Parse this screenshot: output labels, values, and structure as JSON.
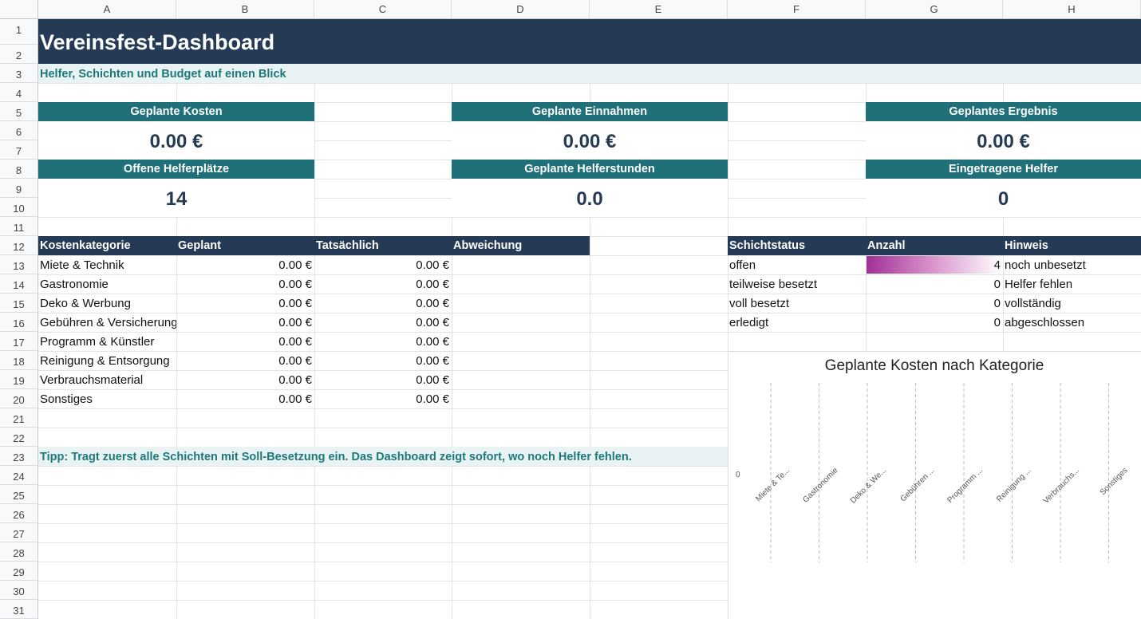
{
  "columns": [
    "A",
    "B",
    "C",
    "D",
    "E",
    "F",
    "G",
    "H"
  ],
  "rows": [
    "1",
    "2",
    "3",
    "4",
    "5",
    "6",
    "7",
    "8",
    "9",
    "10",
    "11",
    "12",
    "13",
    "14",
    "15",
    "16",
    "17",
    "18",
    "19",
    "20",
    "21",
    "22",
    "23",
    "24",
    "25",
    "26",
    "27",
    "28",
    "29",
    "30",
    "31"
  ],
  "title": "Vereinsfest-Dashboard",
  "subtitle": "Helfer, Schichten und Budget auf einen Blick",
  "kpis": [
    {
      "label": "Geplante Kosten",
      "value": "0.00 €"
    },
    {
      "label": "Geplante Einnahmen",
      "value": "0.00 €"
    },
    {
      "label": "Geplantes Ergebnis",
      "value": "0.00 €"
    },
    {
      "label": "Offene Helferplätze",
      "value": "14"
    },
    {
      "label": "Geplante Helferstunden",
      "value": "0.0"
    },
    {
      "label": "Eingetragene Helfer",
      "value": "0"
    }
  ],
  "cost_table": {
    "headers": [
      "Kostenkategorie",
      "Geplant",
      "Tatsächlich",
      "Abweichung"
    ],
    "rows": [
      {
        "category": "Miete & Technik",
        "planned": "0.00 €",
        "actual": "0.00 €"
      },
      {
        "category": "Gastronomie",
        "planned": "0.00 €",
        "actual": "0.00 €"
      },
      {
        "category": "Deko & Werbung",
        "planned": "0.00 €",
        "actual": "0.00 €"
      },
      {
        "category": "Gebühren & Versicherungen",
        "planned": "0.00 €",
        "actual": "0.00 €"
      },
      {
        "category": "Programm & Künstler",
        "planned": "0.00 €",
        "actual": "0.00 €"
      },
      {
        "category": "Reinigung & Entsorgung",
        "planned": "0.00 €",
        "actual": "0.00 €"
      },
      {
        "category": "Verbrauchsmaterial",
        "planned": "0.00 €",
        "actual": "0.00 €"
      },
      {
        "category": "Sonstiges",
        "planned": "0.00 €",
        "actual": "0.00 €"
      }
    ]
  },
  "shift_table": {
    "headers": [
      "Schichtstatus",
      "Anzahl",
      "Hinweis"
    ],
    "rows": [
      {
        "status": "offen",
        "count": "4",
        "hint": "noch unbesetzt",
        "bar_fraction": 1.0
      },
      {
        "status": "teilweise besetzt",
        "count": "0",
        "hint": "Helfer fehlen",
        "bar_fraction": 0
      },
      {
        "status": "voll besetzt",
        "count": "0",
        "hint": "vollständig",
        "bar_fraction": 0
      },
      {
        "status": "erledigt",
        "count": "0",
        "hint": "abgeschlossen",
        "bar_fraction": 0
      }
    ],
    "bar_color": "#a03096"
  },
  "tip": "Tipp: Tragt zuerst alle Schichten mit Soll-Besetzung ein. Das Dashboard zeigt sofort, wo noch Helfer fehlen.",
  "chart_data": {
    "type": "bar",
    "title": "Geplante Kosten nach Kategorie",
    "categories": [
      "Miete & Te...",
      "Gastronomie",
      "Deko & We...",
      "Gebühren ...",
      "Programm ...",
      "Reinigung ...",
      "Verbrauchs...",
      "Sonstiges"
    ],
    "values": [
      0,
      0,
      0,
      0,
      0,
      0,
      0,
      0
    ],
    "y_tick_labels": [
      "0"
    ],
    "grid": true
  },
  "colors": {
    "header_navy": "#253b55",
    "kpi_teal": "#1f7078",
    "accent_teal_text": "#1d7878",
    "light_band": "#e9f3f4"
  }
}
